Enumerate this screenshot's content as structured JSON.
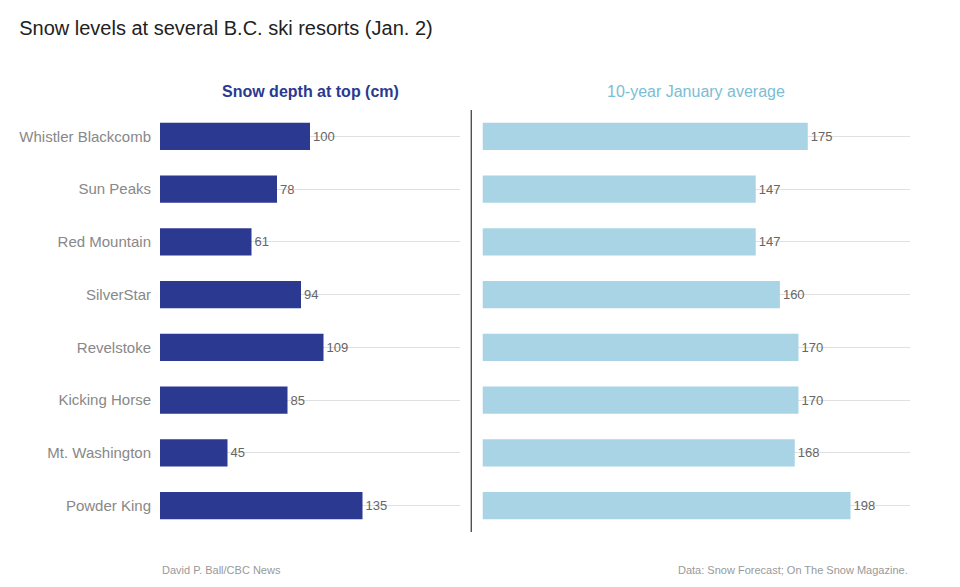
{
  "chart_data": [
    {
      "type": "bar",
      "orientation": "horizontal",
      "title": "Snow levels at several B.C. ski resorts (Jan. 2)",
      "subtitle": "Snow depth at top (cm)",
      "categories": [
        "Whistler Blackcomb",
        "Sun Peaks",
        "Red Mountain",
        "SilverStar",
        "Revelstoke",
        "Kicking Horse",
        "Mt. Washington",
        "Powder King"
      ],
      "values": [
        100,
        78,
        61,
        94,
        109,
        85,
        45,
        135
      ],
      "color": "#2b3990",
      "xlim": [
        0,
        200
      ],
      "data_labels": true,
      "grid": true,
      "tick_labels": "y",
      "annotations": [
        "David P. Ball/CBC News",
        "Data: Snow Forecast; On The Snow Magazine."
      ]
    },
    {
      "type": "bar",
      "orientation": "horizontal",
      "subtitle": "10-year January average",
      "categories": [
        "Whistler Blackcomb",
        "Sun Peaks",
        "Red Mountain",
        "SilverStar",
        "Revelstoke",
        "Kicking Horse",
        "Mt. Washington",
        "Powder King"
      ],
      "values": [
        175,
        147,
        147,
        160,
        170,
        170,
        168,
        198
      ],
      "color": "#a8d4e6",
      "xlim": [
        0,
        230
      ],
      "data_labels": true,
      "grid": true,
      "tick_labels": false
    }
  ]
}
